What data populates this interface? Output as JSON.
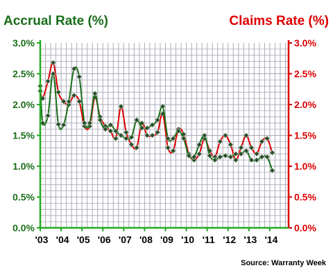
{
  "chart_data": {
    "type": "line",
    "title_left": "Accrual Rate (%)",
    "title_right": "Claims Rate (%)",
    "source": "Source: Warranty Week",
    "colors": {
      "accrual": "#1a6e1a",
      "claims": "#dd0000",
      "grid": "#a9a9b8",
      "axis": "#22aa22",
      "axis_right": "#dd0000"
    },
    "x_tick_labels": [
      "'03",
      "'04",
      "'05",
      "'06",
      "'07",
      "'08",
      "'09",
      "'10",
      "'11",
      "'12",
      "'13",
      "'14"
    ],
    "y_tick_labels_left": [
      "0.0%",
      "0.5%",
      "1.0%",
      "1.5%",
      "2.0%",
      "2.5%",
      "3.0%"
    ],
    "y_tick_labels_right": [
      "0.0%",
      "0.5%",
      "1.0%",
      "1.5%",
      "2.0%",
      "2.5%",
      "3.0%"
    ],
    "ylim": [
      0,
      3.0
    ],
    "xlim": [
      2003,
      2014.9
    ],
    "grid": true,
    "series": [
      {
        "key": "accrual",
        "values": [
          [
            2003.0,
            2.3
          ],
          [
            2003.12,
            1.7
          ],
          [
            2003.37,
            1.82
          ],
          [
            2003.62,
            2.5
          ],
          [
            2003.87,
            1.68
          ],
          [
            2004.12,
            1.67
          ],
          [
            2004.37,
            2.05
          ],
          [
            2004.62,
            2.58
          ],
          [
            2004.87,
            2.45
          ],
          [
            2005.12,
            1.7
          ],
          [
            2005.37,
            1.7
          ],
          [
            2005.62,
            2.18
          ],
          [
            2005.87,
            1.75
          ],
          [
            2006.12,
            1.6
          ],
          [
            2006.37,
            1.67
          ],
          [
            2006.62,
            1.57
          ],
          [
            2006.87,
            1.5
          ],
          [
            2007.12,
            1.45
          ],
          [
            2007.37,
            1.47
          ],
          [
            2007.62,
            1.75
          ],
          [
            2007.87,
            1.62
          ],
          [
            2008.12,
            1.62
          ],
          [
            2008.37,
            1.67
          ],
          [
            2008.62,
            1.75
          ],
          [
            2008.87,
            1.97
          ],
          [
            2009.12,
            1.45
          ],
          [
            2009.37,
            1.45
          ],
          [
            2009.62,
            1.57
          ],
          [
            2009.87,
            1.45
          ],
          [
            2010.12,
            1.17
          ],
          [
            2010.37,
            1.15
          ],
          [
            2010.62,
            1.35
          ],
          [
            2010.87,
            1.5
          ],
          [
            2011.12,
            1.17
          ],
          [
            2011.37,
            1.1
          ],
          [
            2011.62,
            1.15
          ],
          [
            2011.87,
            1.17
          ],
          [
            2012.12,
            1.15
          ],
          [
            2012.37,
            1.2
          ],
          [
            2012.62,
            1.2
          ],
          [
            2012.87,
            1.25
          ],
          [
            2013.12,
            1.1
          ],
          [
            2013.37,
            1.1
          ],
          [
            2013.62,
            1.15
          ],
          [
            2013.87,
            1.15
          ],
          [
            2014.12,
            0.93
          ]
        ]
      },
      {
        "key": "claims",
        "values": [
          [
            2003.0,
            2.22
          ],
          [
            2003.12,
            2.1
          ],
          [
            2003.37,
            2.38
          ],
          [
            2003.62,
            2.68
          ],
          [
            2003.87,
            2.2
          ],
          [
            2004.12,
            2.05
          ],
          [
            2004.37,
            2.0
          ],
          [
            2004.62,
            2.15
          ],
          [
            2004.87,
            2.05
          ],
          [
            2005.12,
            1.65
          ],
          [
            2005.37,
            1.65
          ],
          [
            2005.62,
            2.12
          ],
          [
            2005.87,
            1.8
          ],
          [
            2006.12,
            1.65
          ],
          [
            2006.37,
            1.57
          ],
          [
            2006.62,
            1.45
          ],
          [
            2006.87,
            1.97
          ],
          [
            2007.12,
            1.55
          ],
          [
            2007.37,
            1.35
          ],
          [
            2007.62,
            1.3
          ],
          [
            2007.87,
            1.7
          ],
          [
            2008.12,
            1.5
          ],
          [
            2008.37,
            1.5
          ],
          [
            2008.62,
            1.55
          ],
          [
            2008.87,
            1.85
          ],
          [
            2009.12,
            1.3
          ],
          [
            2009.37,
            1.25
          ],
          [
            2009.62,
            1.6
          ],
          [
            2009.87,
            1.52
          ],
          [
            2010.12,
            1.2
          ],
          [
            2010.37,
            1.1
          ],
          [
            2010.62,
            1.2
          ],
          [
            2010.87,
            1.45
          ],
          [
            2011.12,
            1.25
          ],
          [
            2011.37,
            1.15
          ],
          [
            2011.62,
            1.4
          ],
          [
            2011.87,
            1.5
          ],
          [
            2012.12,
            1.35
          ],
          [
            2012.37,
            1.1
          ],
          [
            2012.62,
            1.3
          ],
          [
            2012.87,
            1.5
          ],
          [
            2013.12,
            1.3
          ],
          [
            2013.37,
            1.2
          ],
          [
            2013.62,
            1.4
          ],
          [
            2013.87,
            1.45
          ],
          [
            2014.12,
            1.22
          ]
        ]
      }
    ]
  }
}
